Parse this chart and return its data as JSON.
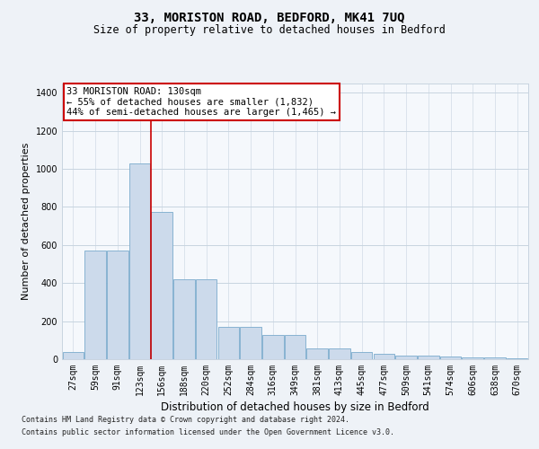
{
  "title": "33, MORISTON ROAD, BEDFORD, MK41 7UQ",
  "subtitle": "Size of property relative to detached houses in Bedford",
  "xlabel": "Distribution of detached houses by size in Bedford",
  "ylabel": "Number of detached properties",
  "categories": [
    "27sqm",
    "59sqm",
    "91sqm",
    "123sqm",
    "156sqm",
    "188sqm",
    "220sqm",
    "252sqm",
    "284sqm",
    "316sqm",
    "349sqm",
    "381sqm",
    "413sqm",
    "445sqm",
    "477sqm",
    "509sqm",
    "541sqm",
    "574sqm",
    "606sqm",
    "638sqm",
    "670sqm"
  ],
  "values": [
    40,
    570,
    570,
    1030,
    775,
    420,
    420,
    170,
    170,
    125,
    125,
    55,
    55,
    40,
    30,
    20,
    18,
    12,
    10,
    10,
    5
  ],
  "bar_color": "#ccdaeb",
  "bar_edge_color": "#7aabcc",
  "annotation_text": "33 MORISTON ROAD: 130sqm\n← 55% of detached houses are smaller (1,832)\n44% of semi-detached houses are larger (1,465) →",
  "annotation_box_facecolor": "#ffffff",
  "annotation_box_edgecolor": "#cc0000",
  "vline_x": 3.5,
  "vline_color": "#cc0000",
  "ylim": [
    0,
    1450
  ],
  "yticks": [
    0,
    200,
    400,
    600,
    800,
    1000,
    1200,
    1400
  ],
  "footnote_line1": "Contains HM Land Registry data © Crown copyright and database right 2024.",
  "footnote_line2": "Contains public sector information licensed under the Open Government Licence v3.0.",
  "background_color": "#eef2f7",
  "plot_bg_color": "#f5f8fc",
  "grid_color": "#c8d4e0",
  "title_fontsize": 10,
  "subtitle_fontsize": 8.5,
  "ylabel_fontsize": 8,
  "xlabel_fontsize": 8.5,
  "tick_fontsize": 7,
  "annot_fontsize": 7.5,
  "footnote_fontsize": 6
}
